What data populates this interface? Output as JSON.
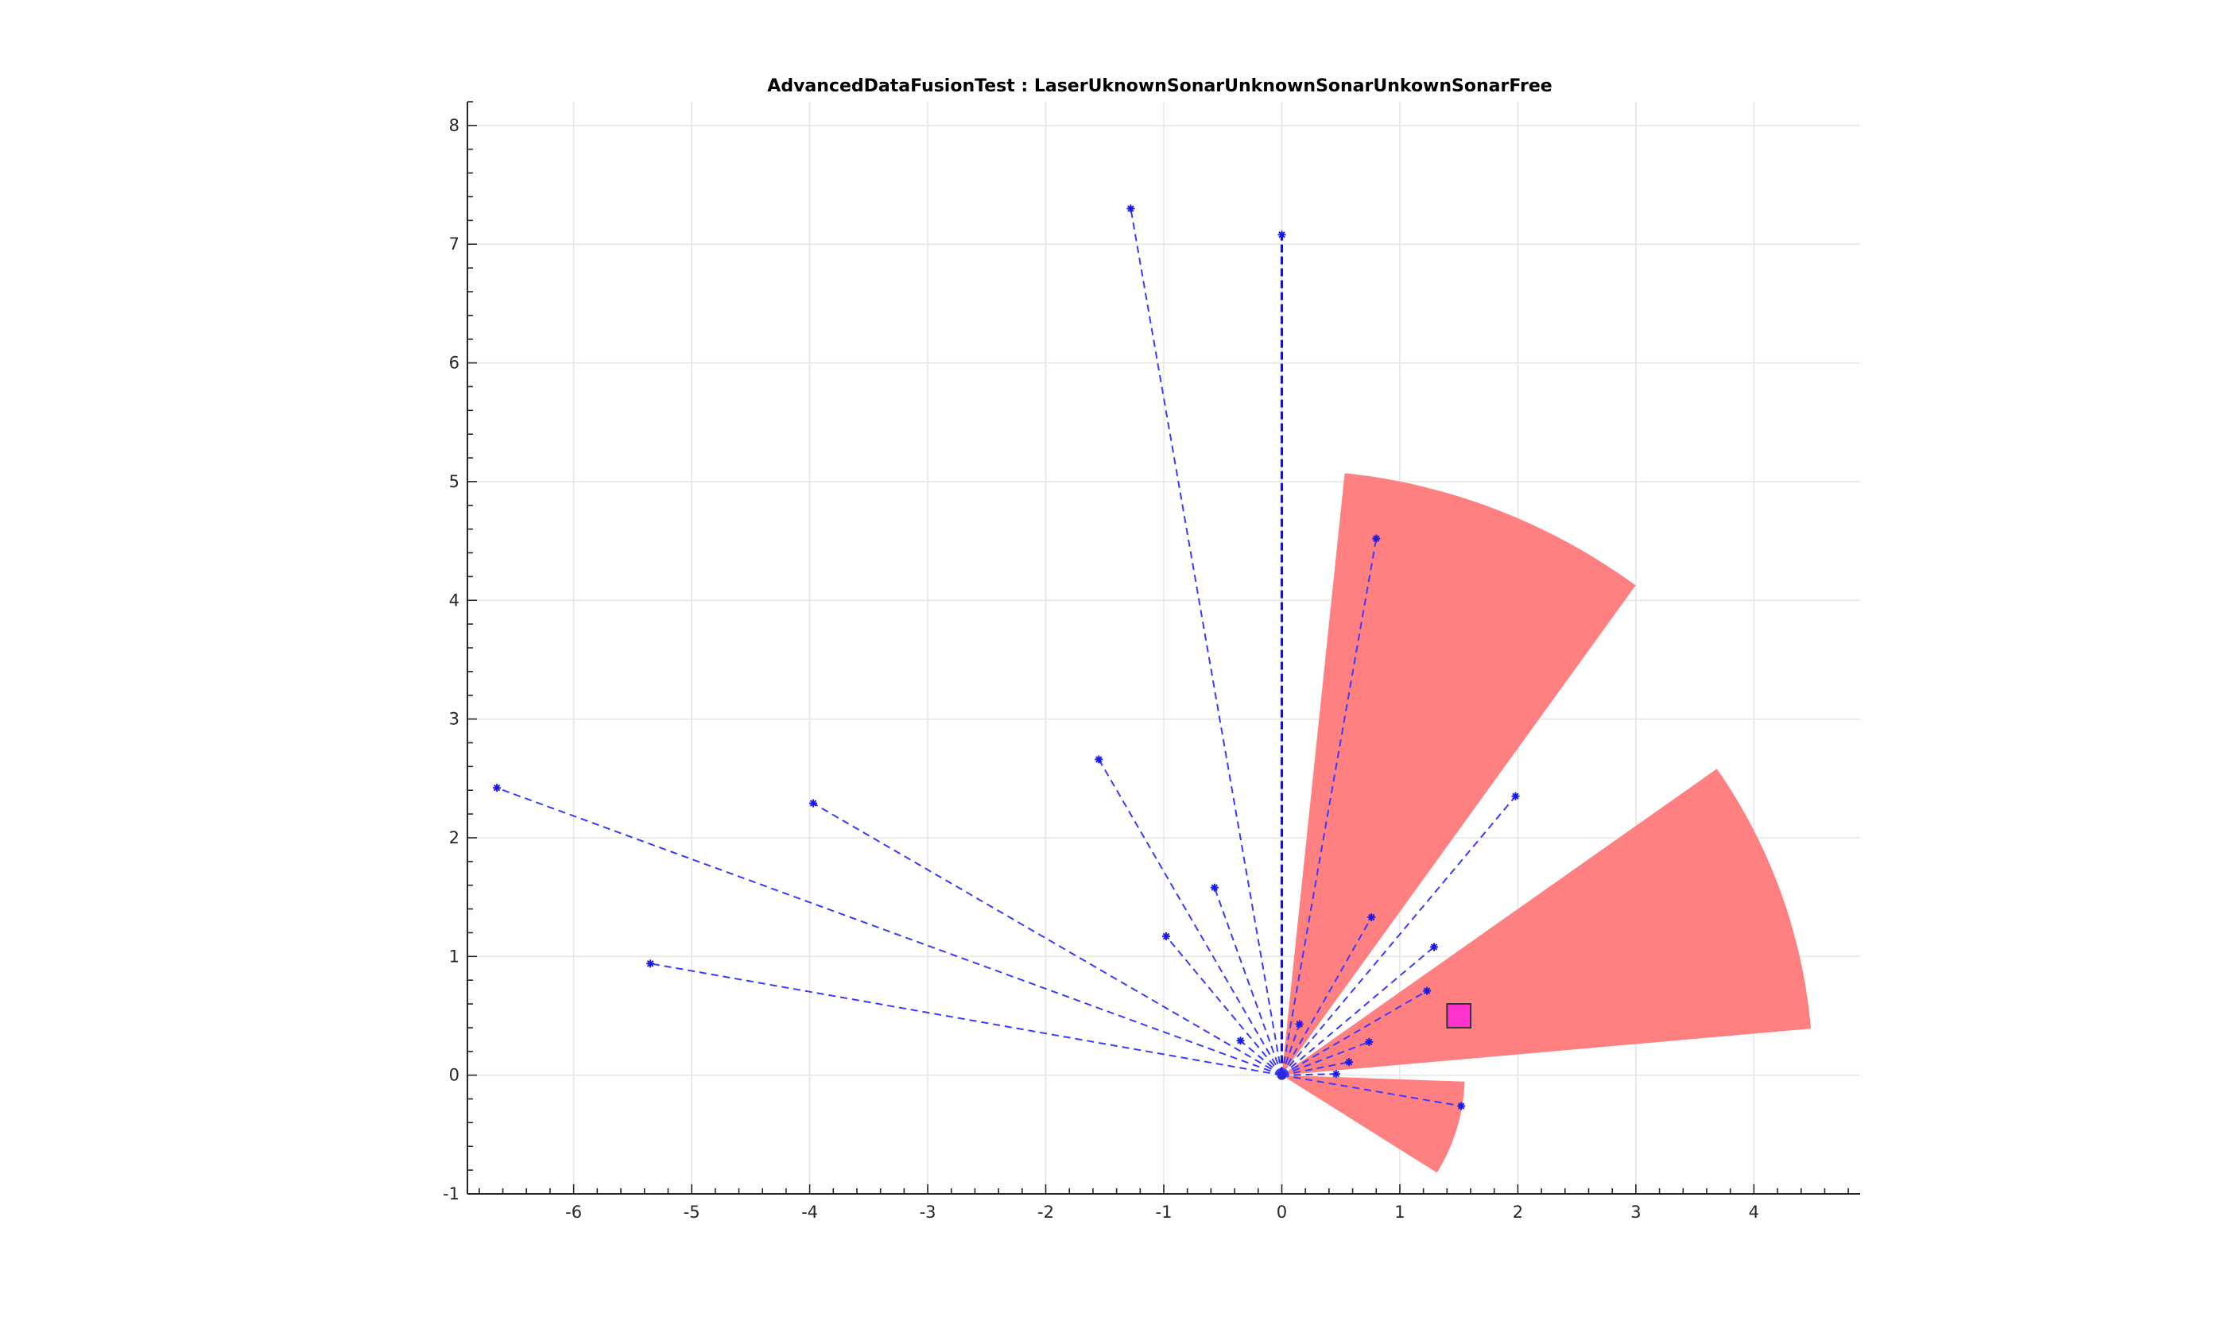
{
  "chart_data": {
    "type": "scatter",
    "title": "AdvancedDataFusionTest : LaserUknownSonarUnknownSonarUnkownSonarFree",
    "xlabel": "",
    "ylabel": "",
    "xlim": [
      -6.9,
      4.9
    ],
    "ylim": [
      -1,
      8.2
    ],
    "xticks": [
      -6,
      -5,
      -4,
      -3,
      -2,
      -1,
      0,
      1,
      2,
      3,
      4
    ],
    "yticks": [
      -1,
      0,
      1,
      2,
      3,
      4,
      5,
      6,
      7,
      8
    ],
    "grid": true,
    "origin": [
      0,
      0
    ],
    "sonar_cones": [
      {
        "range": 5.1,
        "heading_deg": 69,
        "width_deg": 30
      },
      {
        "range": 4.5,
        "heading_deg": 20,
        "width_deg": 30
      },
      {
        "range": 1.55,
        "heading_deg": -17,
        "width_deg": 30
      }
    ],
    "obstacle": {
      "x": 1.5,
      "y": 0.5,
      "size": 0.2
    },
    "laser_endpoints": [
      {
        "x": -6.65,
        "y": 2.42
      },
      {
        "x": -5.35,
        "y": 0.94
      },
      {
        "x": -3.97,
        "y": 2.29
      },
      {
        "x": -1.55,
        "y": 2.66
      },
      {
        "x": -1.28,
        "y": 7.3
      },
      {
        "x": -0.98,
        "y": 1.17
      },
      {
        "x": -0.57,
        "y": 1.58
      },
      {
        "x": -0.35,
        "y": 0.29
      },
      {
        "x": 0.0,
        "y": 7.08
      },
      {
        "x": 0.8,
        "y": 4.52
      },
      {
        "x": 0.76,
        "y": 1.33
      },
      {
        "x": 0.15,
        "y": 0.43
      },
      {
        "x": 1.98,
        "y": 2.35
      },
      {
        "x": 1.29,
        "y": 1.08
      },
      {
        "x": 1.23,
        "y": 0.71
      },
      {
        "x": 0.74,
        "y": 0.28
      },
      {
        "x": 0.57,
        "y": 0.11
      },
      {
        "x": 0.46,
        "y": 0.01
      },
      {
        "x": 1.52,
        "y": -0.26
      }
    ]
  },
  "colors": {
    "ray": "#3a3aff",
    "sonar_cone": "#ff8080",
    "obstacle": "#ff33cc"
  }
}
